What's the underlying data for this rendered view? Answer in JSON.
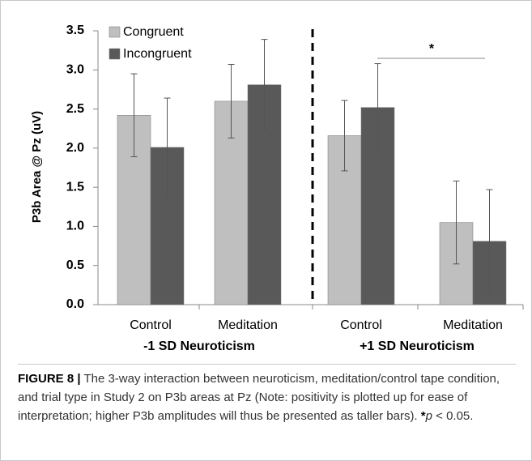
{
  "chart_data": {
    "type": "bar",
    "ylabel": "P3b Area @ Pz (uV)",
    "categories": [
      "Control",
      "Meditation",
      "Control",
      "Meditation"
    ],
    "groups": [
      "-1 SD Neuroticism",
      "+1 SD Neuroticism"
    ],
    "series": [
      {
        "name": "Congruent",
        "color": "#bfbfbf",
        "values": [
          2.42,
          2.6,
          2.16,
          1.05
        ],
        "errors": [
          0.53,
          0.47,
          0.45,
          0.53
        ]
      },
      {
        "name": "Incongruent",
        "color": "#595959",
        "values": [
          2.01,
          2.81,
          2.52,
          0.81
        ],
        "errors": [
          0.63,
          0.58,
          0.56,
          0.66
        ]
      }
    ],
    "ylim": [
      0,
      3.5
    ],
    "yticks": [
      {
        "value": 0,
        "label": "0.0"
      },
      {
        "value": 0.5,
        "label": "0.5"
      },
      {
        "value": 1,
        "label": "1.0"
      },
      {
        "value": 1.5,
        "label": "1.5"
      },
      {
        "value": 2,
        "label": "2.0"
      },
      {
        "value": 2.5,
        "label": "2.5"
      },
      {
        "value": 3,
        "label": "3.0"
      },
      {
        "value": 3.5,
        "label": "3.5"
      }
    ],
    "annotation": "*",
    "legend": "upper left"
  },
  "caption": {
    "label": "FIGURE 8 |",
    "text": "The 3-way interaction between neuroticism, meditation/control tape condition, and trial type in Study 2 on P3b areas at Pz (Note: positivity is plotted up for ease of interpretation; higher P3b amplitudes will thus be presented as taller bars).",
    "star": "*",
    "p": "p",
    "rest": "< 0.05."
  }
}
